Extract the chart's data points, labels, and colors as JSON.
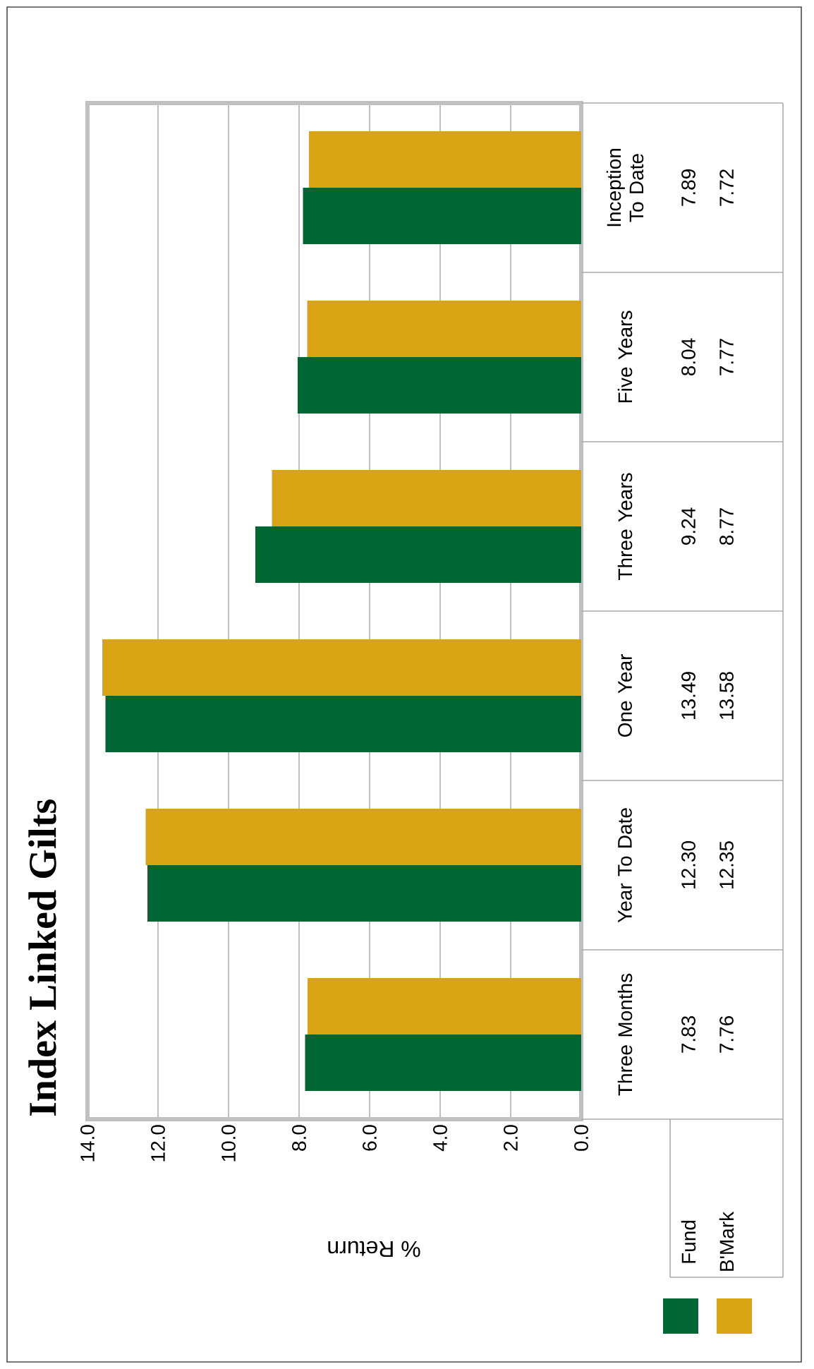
{
  "chart_data": {
    "type": "bar",
    "orientation": "horizontal",
    "title": "Index Linked Gilts",
    "xlabel": "% Return",
    "categories": [
      "Inception To Date",
      "Five Years",
      "Three Years",
      "One Year",
      "Year To Date",
      "Three Months"
    ],
    "series": [
      {
        "name": "Fund",
        "color": "#006633",
        "values": [
          7.89,
          8.04,
          9.24,
          13.49,
          12.3,
          7.83
        ],
        "value_labels": [
          "7.89",
          "8.04",
          "9.24",
          "13.49",
          "12.30",
          "7.83"
        ]
      },
      {
        "name": "B'Mark",
        "color": "#d9a414",
        "values": [
          7.72,
          7.77,
          8.77,
          13.58,
          12.35,
          7.76
        ],
        "value_labels": [
          "7.72",
          "7.77",
          "8.77",
          "13.58",
          "12.35",
          "7.76"
        ]
      }
    ],
    "xlim": [
      14,
      0
    ],
    "xticks": [
      {
        "value": 14,
        "label": "14.0"
      },
      {
        "value": 12,
        "label": "12.0"
      },
      {
        "value": 10,
        "label": "10.0"
      },
      {
        "value": 8,
        "label": "8.0"
      },
      {
        "value": 6,
        "label": "6.0"
      },
      {
        "value": 4,
        "label": "4.0"
      },
      {
        "value": 2,
        "label": "2.0"
      },
      {
        "value": 0,
        "label": "0.0"
      }
    ],
    "grid": "x",
    "legend": "bottom right"
  }
}
